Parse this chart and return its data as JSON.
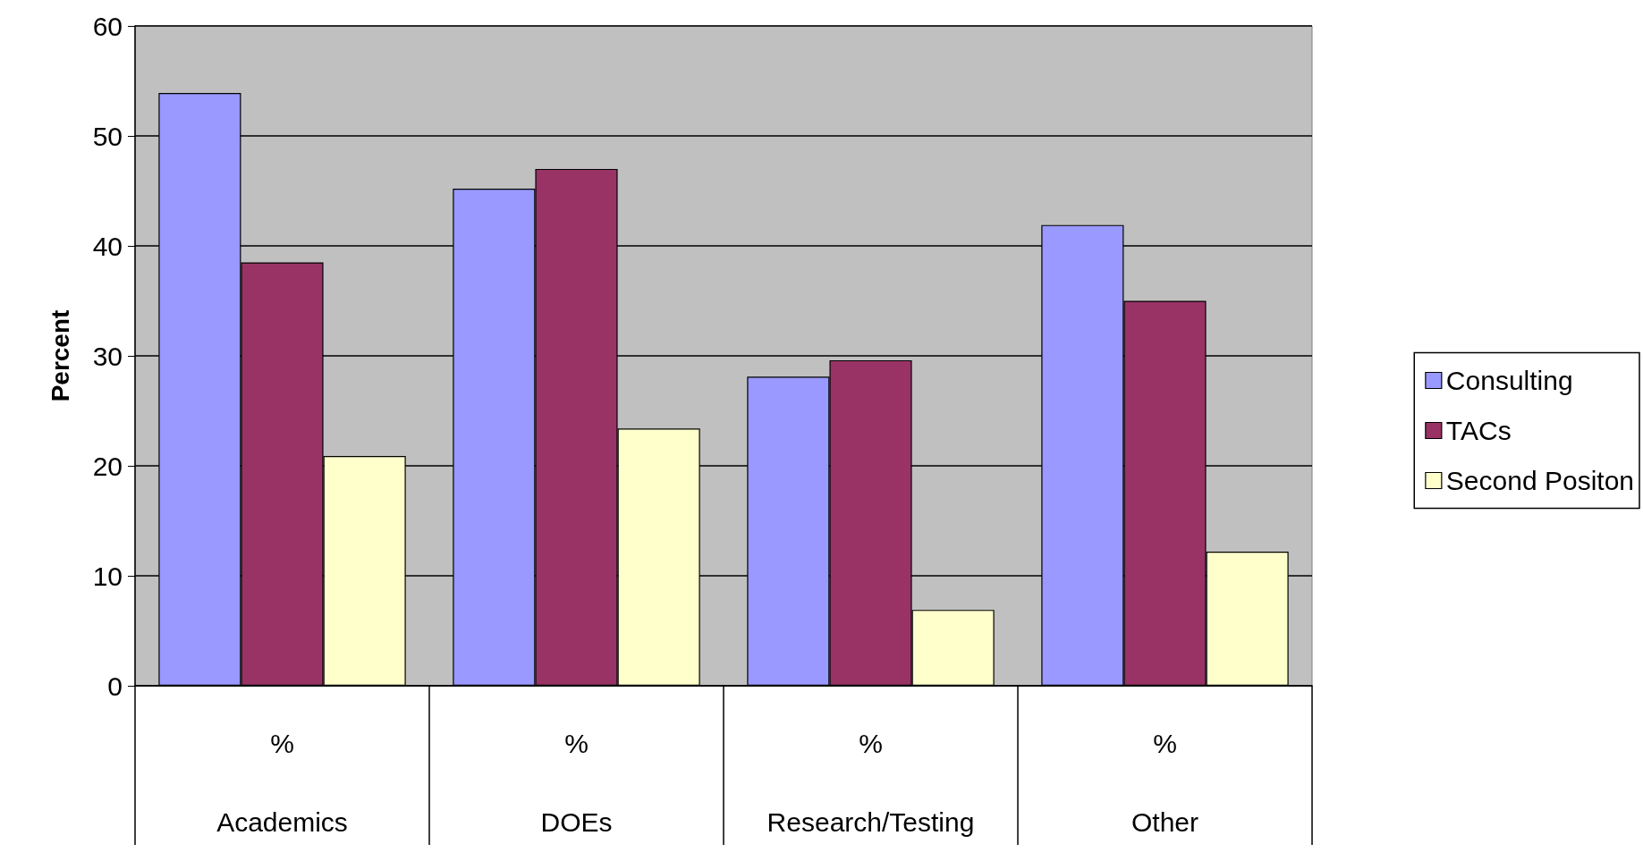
{
  "chart_data": {
    "type": "bar",
    "ylabel": "Percent",
    "categories": [
      "%\nAcademics",
      "%\nDOEs",
      "%\nResearch/Testing",
      "%\nOther"
    ],
    "series": [
      {
        "name": "Consulting",
        "color": "#9999ff",
        "values": [
          53.9,
          45.2,
          28.1,
          41.9
        ]
      },
      {
        "name": "TACs",
        "color": "#993366",
        "values": [
          38.5,
          47.0,
          29.6,
          35.0
        ]
      },
      {
        "name": "Second Positon",
        "color": "#ffffcc",
        "values": [
          20.9,
          23.4,
          6.9,
          12.2
        ]
      }
    ],
    "ylim": [
      0,
      60
    ],
    "yticks": [
      0,
      10,
      20,
      30,
      40,
      50,
      60
    ],
    "grid": "y",
    "legend": "right"
  }
}
